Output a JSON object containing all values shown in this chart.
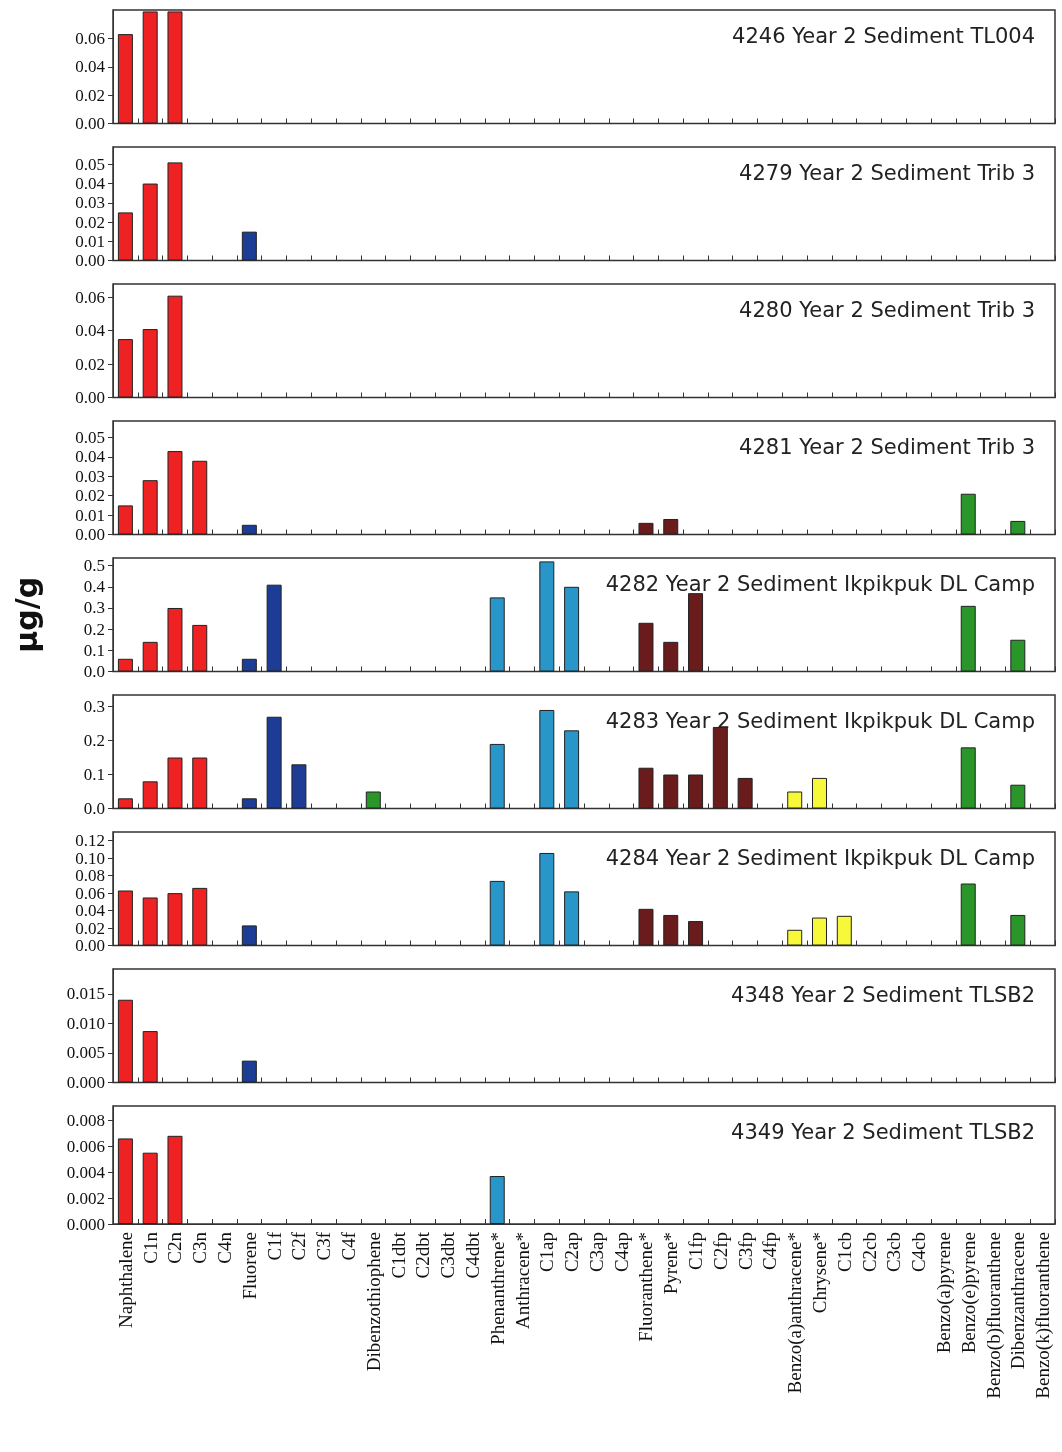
{
  "chart_data": [
    {
      "type": "bar",
      "title": "4246 Year 2 Sediment TL004",
      "tick_labels": "y",
      "categories": [
        null,
        null,
        null,
        null,
        null,
        null,
        null,
        null,
        null,
        null,
        null,
        null,
        null,
        null,
        null,
        null,
        null,
        null,
        null,
        null,
        null,
        null,
        null,
        null,
        null,
        null,
        null,
        null,
        null,
        null,
        null,
        null,
        null,
        null,
        null,
        null,
        null,
        null
      ],
      "ylim": [
        0,
        0.08
      ],
      "yticks": [
        {
          "value": 0,
          "label": "0.00"
        },
        {
          "value": 0.02,
          "label": "0.02"
        },
        {
          "value": 0.04,
          "label": "0.04"
        },
        {
          "value": 0.06,
          "label": "0.06"
        }
      ],
      "series": [
        {
          "values": [
            0.063,
            0.079,
            0.079,
            null,
            null,
            null,
            null,
            null,
            null,
            null,
            null,
            null,
            null,
            null,
            null,
            null,
            null,
            null,
            null,
            null,
            null,
            null,
            null,
            null,
            null,
            null,
            null,
            null,
            null,
            null,
            null,
            null,
            null,
            null,
            null,
            null,
            null,
            null
          ],
          "colors": [
            "#ee2222",
            "#ee2222",
            "#ee2222",
            null,
            null,
            null,
            null,
            null,
            null,
            null,
            null,
            null,
            null,
            null,
            null,
            null,
            null,
            null,
            null,
            null,
            null,
            null,
            null,
            null,
            null,
            null,
            null,
            null,
            null,
            null,
            null,
            null,
            null,
            null,
            null,
            null,
            null,
            null
          ]
        }
      ]
    },
    {
      "type": "bar",
      "title": "4279 Year 2 Sediment Trib 3",
      "tick_labels": "y",
      "categories": [
        null,
        null,
        null,
        null,
        null,
        null,
        null,
        null,
        null,
        null,
        null,
        null,
        null,
        null,
        null,
        null,
        null,
        null,
        null,
        null,
        null,
        null,
        null,
        null,
        null,
        null,
        null,
        null,
        null,
        null,
        null,
        null,
        null,
        null,
        null,
        null,
        null,
        null
      ],
      "ylim": [
        0,
        0.059
      ],
      "yticks": [
        {
          "value": 0,
          "label": "0.00"
        },
        {
          "value": 0.01,
          "label": "0.01"
        },
        {
          "value": 0.02,
          "label": "0.02"
        },
        {
          "value": 0.03,
          "label": "0.03"
        },
        {
          "value": 0.04,
          "label": "0.04"
        },
        {
          "value": 0.05,
          "label": "0.05"
        }
      ],
      "series": [
        {
          "values": [
            0.025,
            0.04,
            0.051,
            null,
            null,
            0.015,
            null,
            null,
            null,
            null,
            null,
            null,
            null,
            null,
            null,
            null,
            null,
            null,
            null,
            null,
            null,
            null,
            null,
            null,
            null,
            null,
            null,
            null,
            null,
            null,
            null,
            null,
            null,
            null,
            null,
            null,
            null,
            null
          ],
          "colors": [
            "#ee2222",
            "#ee2222",
            "#ee2222",
            null,
            null,
            "#1c3c96",
            null,
            null,
            null,
            null,
            null,
            null,
            null,
            null,
            null,
            null,
            null,
            null,
            null,
            null,
            null,
            null,
            null,
            null,
            null,
            null,
            null,
            null,
            null,
            null,
            null,
            null,
            null,
            null,
            null,
            null,
            null,
            null
          ]
        }
      ]
    },
    {
      "type": "bar",
      "title": "4280 Year 2 Sediment Trib 3",
      "tick_labels": "y",
      "categories": [
        null,
        null,
        null,
        null,
        null,
        null,
        null,
        null,
        null,
        null,
        null,
        null,
        null,
        null,
        null,
        null,
        null,
        null,
        null,
        null,
        null,
        null,
        null,
        null,
        null,
        null,
        null,
        null,
        null,
        null,
        null,
        null,
        null,
        null,
        null,
        null,
        null,
        null
      ],
      "ylim": [
        0,
        0.068
      ],
      "yticks": [
        {
          "value": 0,
          "label": "0.00"
        },
        {
          "value": 0.02,
          "label": "0.02"
        },
        {
          "value": 0.04,
          "label": "0.04"
        },
        {
          "value": 0.06,
          "label": "0.06"
        }
      ],
      "series": [
        {
          "values": [
            0.035,
            0.041,
            0.061,
            null,
            null,
            null,
            null,
            null,
            null,
            null,
            null,
            null,
            null,
            null,
            null,
            null,
            null,
            null,
            null,
            null,
            null,
            null,
            null,
            null,
            null,
            null,
            null,
            null,
            null,
            null,
            null,
            null,
            null,
            null,
            null,
            null,
            null,
            null
          ],
          "colors": [
            "#ee2222",
            "#ee2222",
            "#ee2222",
            null,
            null,
            null,
            null,
            null,
            null,
            null,
            null,
            null,
            null,
            null,
            null,
            null,
            null,
            null,
            null,
            null,
            null,
            null,
            null,
            null,
            null,
            null,
            null,
            null,
            null,
            null,
            null,
            null,
            null,
            null,
            null,
            null,
            null,
            null
          ]
        }
      ]
    },
    {
      "type": "bar",
      "title": "4281 Year 2 Sediment Trib 3",
      "tick_labels": "y",
      "categories": [
        null,
        null,
        null,
        null,
        null,
        null,
        null,
        null,
        null,
        null,
        null,
        null,
        null,
        null,
        null,
        null,
        null,
        null,
        null,
        null,
        null,
        null,
        null,
        null,
        null,
        null,
        null,
        null,
        null,
        null,
        null,
        null,
        null,
        null,
        null,
        null,
        null,
        null
      ],
      "ylim": [
        0,
        0.0585
      ],
      "yticks": [
        {
          "value": 0,
          "label": "0.00"
        },
        {
          "value": 0.01,
          "label": "0.01"
        },
        {
          "value": 0.02,
          "label": "0.02"
        },
        {
          "value": 0.03,
          "label": "0.03"
        },
        {
          "value": 0.04,
          "label": "0.04"
        },
        {
          "value": 0.05,
          "label": "0.05"
        }
      ],
      "series": [
        {
          "values": [
            0.015,
            0.028,
            0.043,
            0.038,
            null,
            0.005,
            null,
            null,
            null,
            null,
            null,
            null,
            null,
            null,
            null,
            null,
            null,
            null,
            null,
            null,
            null,
            0.006,
            0.008,
            null,
            null,
            null,
            null,
            null,
            null,
            null,
            null,
            null,
            null,
            null,
            0.021,
            null,
            0.007,
            null
          ],
          "colors": [
            "#ee2222",
            "#ee2222",
            "#ee2222",
            "#ee2222",
            null,
            "#1c3c96",
            null,
            null,
            null,
            null,
            null,
            null,
            null,
            null,
            null,
            null,
            null,
            null,
            null,
            null,
            null,
            "#6a1c1c",
            "#6a1c1c",
            null,
            null,
            null,
            null,
            null,
            null,
            null,
            null,
            null,
            null,
            null,
            "#2a962a",
            null,
            "#2a962a",
            null
          ]
        }
      ]
    },
    {
      "type": "bar",
      "title": "4282 Year 2 Sediment Ikpikpuk DL Camp",
      "ylabel": "µg/g",
      "tick_labels": "y",
      "categories": [
        null,
        null,
        null,
        null,
        null,
        null,
        null,
        null,
        null,
        null,
        null,
        null,
        null,
        null,
        null,
        null,
        null,
        null,
        null,
        null,
        null,
        null,
        null,
        null,
        null,
        null,
        null,
        null,
        null,
        null,
        null,
        null,
        null,
        null,
        null,
        null,
        null,
        null
      ],
      "ylim": [
        0,
        0.536
      ],
      "yticks": [
        {
          "value": 0,
          "label": "0.0"
        },
        {
          "value": 0.1,
          "label": "0.1"
        },
        {
          "value": 0.2,
          "label": "0.2"
        },
        {
          "value": 0.3,
          "label": "0.3"
        },
        {
          "value": 0.4,
          "label": "0.4"
        },
        {
          "value": 0.5,
          "label": "0.5"
        }
      ],
      "series": [
        {
          "values": [
            0.06,
            0.14,
            0.3,
            0.22,
            null,
            0.06,
            0.41,
            null,
            null,
            null,
            null,
            null,
            null,
            null,
            null,
            0.35,
            null,
            0.52,
            0.4,
            null,
            null,
            0.23,
            0.14,
            0.37,
            null,
            null,
            null,
            null,
            null,
            null,
            null,
            null,
            null,
            null,
            0.31,
            null,
            0.15,
            null
          ],
          "colors": [
            "#ee2222",
            "#ee2222",
            "#ee2222",
            "#ee2222",
            null,
            "#1c3c96",
            "#1c3c96",
            null,
            null,
            null,
            null,
            null,
            null,
            null,
            null,
            "#2896c8",
            null,
            "#2896c8",
            "#2896c8",
            null,
            null,
            "#6a1c1c",
            "#6a1c1c",
            "#6a1c1c",
            null,
            null,
            null,
            null,
            null,
            null,
            null,
            null,
            null,
            null,
            "#2a962a",
            null,
            "#2a962a",
            null
          ]
        }
      ]
    },
    {
      "type": "bar",
      "title": "4283 Year 2 Sediment Ikpikpuk DL Camp",
      "tick_labels": "y",
      "categories": [
        null,
        null,
        null,
        null,
        null,
        null,
        null,
        null,
        null,
        null,
        null,
        null,
        null,
        null,
        null,
        null,
        null,
        null,
        null,
        null,
        null,
        null,
        null,
        null,
        null,
        null,
        null,
        null,
        null,
        null,
        null,
        null,
        null,
        null,
        null,
        null,
        null,
        null
      ],
      "ylim": [
        0,
        0.334
      ],
      "yticks": [
        {
          "value": 0,
          "label": "0.0"
        },
        {
          "value": 0.1,
          "label": "0.1"
        },
        {
          "value": 0.2,
          "label": "0.2"
        },
        {
          "value": 0.3,
          "label": "0.3"
        }
      ],
      "series": [
        {
          "values": [
            0.03,
            0.08,
            0.15,
            0.15,
            null,
            0.03,
            0.27,
            0.13,
            null,
            null,
            0.05,
            null,
            null,
            null,
            null,
            0.19,
            null,
            0.29,
            0.23,
            null,
            null,
            0.12,
            0.1,
            0.1,
            0.24,
            0.09,
            null,
            0.05,
            0.09,
            null,
            null,
            null,
            null,
            null,
            0.18,
            null,
            0.07,
            null
          ],
          "colors": [
            "#ee2222",
            "#ee2222",
            "#ee2222",
            "#ee2222",
            null,
            "#1c3c96",
            "#1c3c96",
            "#1c3c96",
            null,
            null,
            "#2a962a",
            null,
            null,
            null,
            null,
            "#2896c8",
            null,
            "#2896c8",
            "#2896c8",
            null,
            null,
            "#6a1c1c",
            "#6a1c1c",
            "#6a1c1c",
            "#6a1c1c",
            "#6a1c1c",
            null,
            "#f8f83a",
            "#f8f83a",
            null,
            null,
            null,
            null,
            null,
            "#2a962a",
            null,
            "#2a962a",
            null
          ]
        }
      ]
    },
    {
      "type": "bar",
      "title": "4284 Year 2 Sediment Ikpikpuk DL Camp",
      "tick_labels": "y",
      "categories": [
        null,
        null,
        null,
        null,
        null,
        null,
        null,
        null,
        null,
        null,
        null,
        null,
        null,
        null,
        null,
        null,
        null,
        null,
        null,
        null,
        null,
        null,
        null,
        null,
        null,
        null,
        null,
        null,
        null,
        null,
        null,
        null,
        null,
        null,
        null,
        null,
        null,
        null
      ],
      "ylim": [
        0,
        0.13
      ],
      "yticks": [
        {
          "value": 0,
          "label": "0.00"
        },
        {
          "value": 0.02,
          "label": "0.02"
        },
        {
          "value": 0.04,
          "label": "0.04"
        },
        {
          "value": 0.06,
          "label": "0.06"
        },
        {
          "value": 0.08,
          "label": "0.08"
        },
        {
          "value": 0.1,
          "label": "0.10"
        },
        {
          "value": 0.12,
          "label": "0.12"
        }
      ],
      "series": [
        {
          "values": [
            0.063,
            0.055,
            0.06,
            0.066,
            null,
            0.023,
            null,
            null,
            null,
            null,
            null,
            null,
            null,
            null,
            null,
            0.074,
            null,
            0.106,
            0.062,
            null,
            null,
            0.042,
            0.035,
            0.028,
            null,
            null,
            null,
            0.018,
            0.032,
            0.034,
            null,
            null,
            null,
            null,
            0.071,
            null,
            0.035,
            null
          ],
          "colors": [
            "#ee2222",
            "#ee2222",
            "#ee2222",
            "#ee2222",
            null,
            "#1c3c96",
            null,
            null,
            null,
            null,
            null,
            null,
            null,
            null,
            null,
            "#2896c8",
            null,
            "#2896c8",
            "#2896c8",
            null,
            null,
            "#6a1c1c",
            "#6a1c1c",
            "#6a1c1c",
            null,
            null,
            null,
            "#f8f83a",
            "#f8f83a",
            "#f8f83a",
            null,
            null,
            null,
            null,
            "#2a962a",
            null,
            "#2a962a",
            null
          ]
        }
      ]
    },
    {
      "type": "bar",
      "title": "4348 Year 2 Sediment TLSB2",
      "tick_labels": "y",
      "categories": [
        null,
        null,
        null,
        null,
        null,
        null,
        null,
        null,
        null,
        null,
        null,
        null,
        null,
        null,
        null,
        null,
        null,
        null,
        null,
        null,
        null,
        null,
        null,
        null,
        null,
        null,
        null,
        null,
        null,
        null,
        null,
        null,
        null,
        null,
        null,
        null,
        null,
        null
      ],
      "ylim": [
        0,
        0.0192
      ],
      "yticks": [
        {
          "value": 0,
          "label": "0.000"
        },
        {
          "value": 0.005,
          "label": "0.005"
        },
        {
          "value": 0.01,
          "label": "0.010"
        },
        {
          "value": 0.015,
          "label": "0.015"
        }
      ],
      "series": [
        {
          "values": [
            0.014,
            0.0087,
            null,
            null,
            null,
            0.0037,
            null,
            null,
            null,
            null,
            null,
            null,
            null,
            null,
            null,
            null,
            null,
            null,
            null,
            null,
            null,
            null,
            null,
            null,
            null,
            null,
            null,
            null,
            null,
            null,
            null,
            null,
            null,
            null,
            null,
            null,
            null,
            null
          ],
          "colors": [
            "#ee2222",
            "#ee2222",
            null,
            null,
            null,
            "#1c3c96",
            null,
            null,
            null,
            null,
            null,
            null,
            null,
            null,
            null,
            null,
            null,
            null,
            null,
            null,
            null,
            null,
            null,
            null,
            null,
            null,
            null,
            null,
            null,
            null,
            null,
            null,
            null,
            null,
            null,
            null,
            null,
            null
          ]
        }
      ]
    },
    {
      "type": "bar",
      "title": "4349 Year 2 Sediment TLSB2",
      "categories": [
        "Naphthalene",
        "C1n",
        "C2n",
        "C3n",
        "C4n",
        "Fluorene",
        "C1f",
        "C2f",
        "C3f",
        "C4f",
        "Dibenzothiophene",
        "C1dbt",
        "C2dbt",
        "C3dbt",
        "C4dbt",
        "Phenanthrene*",
        "Anthracene*",
        "C1ap",
        "C2ap",
        "C3ap",
        "C4ap",
        "Fluoranthene*",
        "Pyrene*",
        "C1fp",
        "C2fp",
        "C3fp",
        "C4fp",
        "Benzo(a)anthracene*",
        "Chrysene*",
        "C1cb",
        "C2cb",
        "C3cb",
        "C4cb",
        "Benzo(a)pyrene",
        "Benzo(e)pyrene",
        "Benzo(b)fluoranthene",
        "Dibenzanthracene",
        "Benzo(k)fluoranthene"
      ],
      "ylim": [
        0,
        0.0091
      ],
      "yticks": [
        {
          "value": 0,
          "label": "0.000"
        },
        {
          "value": 0.002,
          "label": "0.002"
        },
        {
          "value": 0.004,
          "label": "0.004"
        },
        {
          "value": 0.006,
          "label": "0.006"
        },
        {
          "value": 0.008,
          "label": "0.008"
        }
      ],
      "series": [
        {
          "values": [
            0.0066,
            0.0055,
            0.0068,
            null,
            null,
            null,
            null,
            null,
            null,
            null,
            null,
            null,
            null,
            null,
            null,
            0.0037,
            null,
            null,
            null,
            null,
            null,
            null,
            null,
            null,
            null,
            null,
            null,
            null,
            null,
            null,
            null,
            null,
            null,
            null,
            null,
            null,
            null,
            null
          ],
          "colors": [
            "#ee2222",
            "#ee2222",
            "#ee2222",
            null,
            null,
            null,
            null,
            null,
            null,
            null,
            null,
            null,
            null,
            null,
            null,
            "#2896c8",
            null,
            null,
            null,
            null,
            null,
            null,
            null,
            null,
            null,
            null,
            null,
            null,
            null,
            null,
            null,
            null,
            null,
            null,
            null,
            null,
            null,
            null
          ]
        }
      ]
    }
  ]
}
